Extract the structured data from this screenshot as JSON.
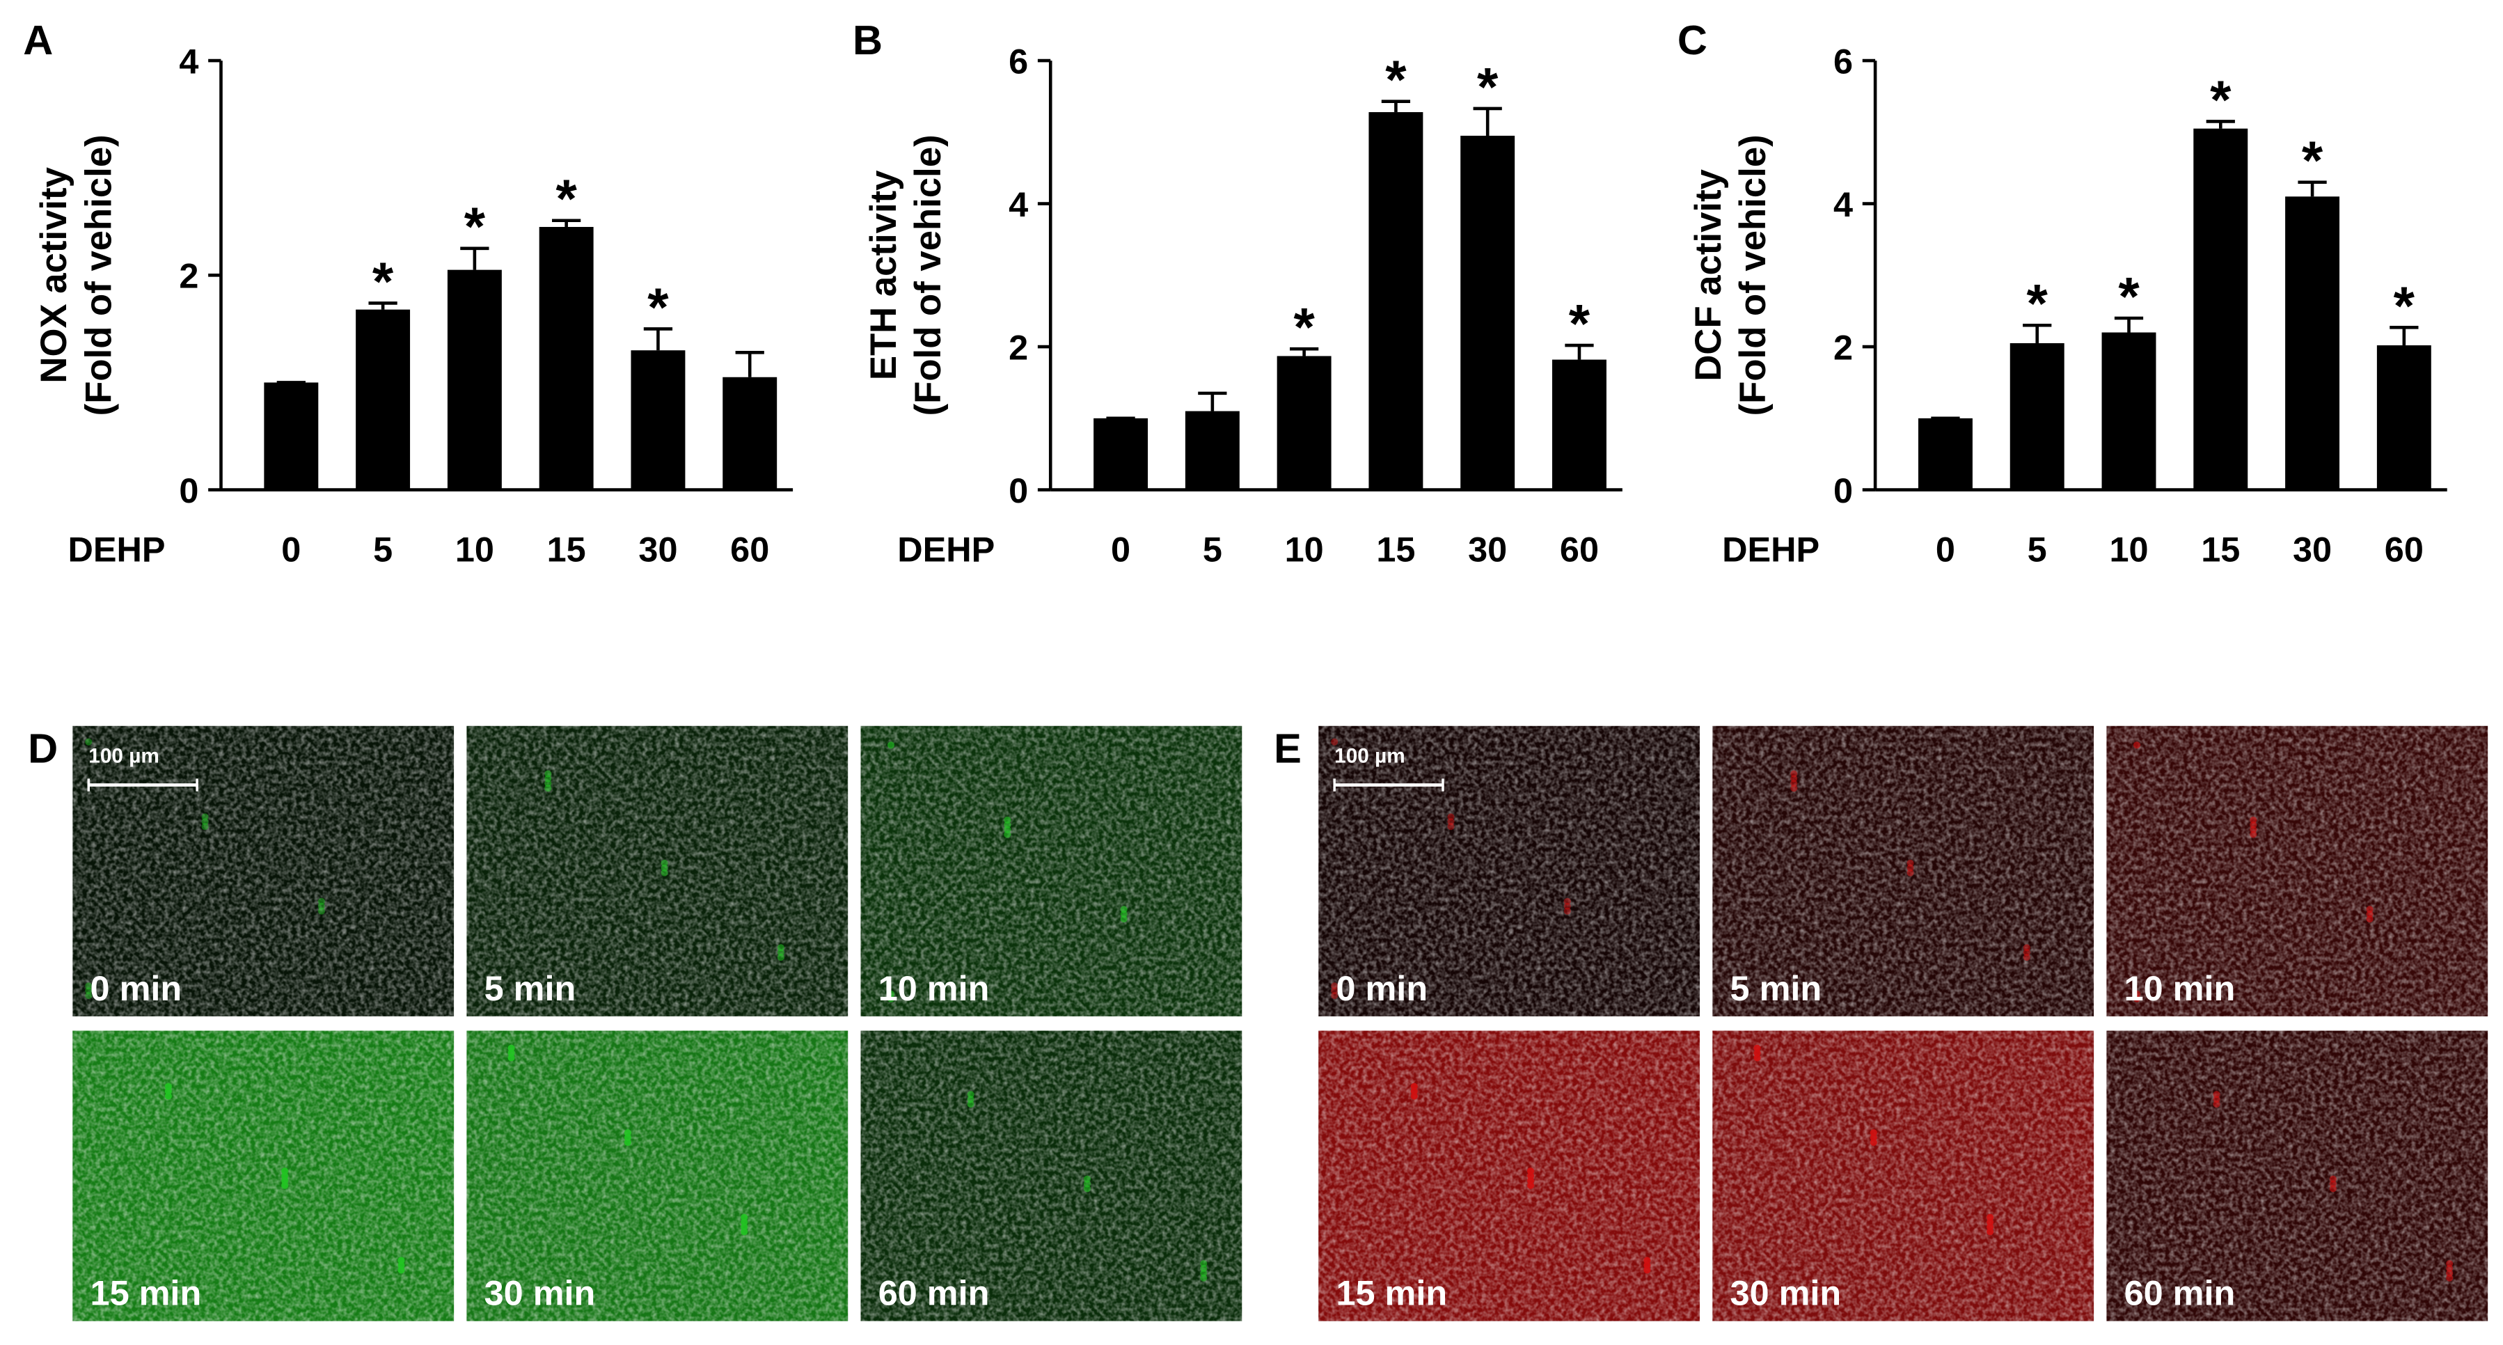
{
  "chart_data": [
    {
      "type": "bar",
      "panel": "A",
      "ylabel": [
        "NOX activity",
        "(Fold of vehicle)"
      ],
      "xlabel": "DEHP",
      "categories": [
        "0",
        "5",
        "10",
        "15",
        "30",
        "60"
      ],
      "values": [
        1.0,
        1.68,
        2.05,
        2.45,
        1.3,
        1.05
      ],
      "errors": [
        0,
        0.06,
        0.2,
        0.06,
        0.2,
        0.23
      ],
      "annotations": [
        {
          "index": 1,
          "text": "*"
        },
        {
          "index": 2,
          "text": "*"
        },
        {
          "index": 3,
          "text": "*"
        },
        {
          "index": 4,
          "text": "*"
        }
      ],
      "color": "#000000",
      "ylim": [
        0,
        4
      ],
      "yticks": [
        0,
        2,
        4
      ]
    },
    {
      "type": "bar",
      "panel": "B",
      "ylabel": [
        "ETH activity",
        "(Fold of vehicle)"
      ],
      "xlabel": "DEHP",
      "categories": [
        "0",
        "5",
        "10",
        "15",
        "30",
        "60"
      ],
      "values": [
        1.0,
        1.1,
        1.87,
        5.28,
        4.95,
        1.82
      ],
      "errors": [
        0,
        0.25,
        0.1,
        0.15,
        0.38,
        0.2
      ],
      "annotations": [
        {
          "index": 2,
          "text": "*"
        },
        {
          "index": 3,
          "text": "*"
        },
        {
          "index": 4,
          "text": "*"
        },
        {
          "index": 5,
          "text": "*"
        }
      ],
      "color": "#000000",
      "ylim": [
        0,
        6
      ],
      "yticks": [
        0,
        2,
        4,
        6
      ]
    },
    {
      "type": "bar",
      "panel": "C",
      "ylabel": [
        "DCF activity",
        "(Fold of vehicle)"
      ],
      "xlabel": "DEHP",
      "categories": [
        "0",
        "5",
        "10",
        "15",
        "30",
        "60"
      ],
      "values": [
        1.0,
        2.05,
        2.2,
        5.05,
        4.1,
        2.02
      ],
      "errors": [
        0,
        0.25,
        0.2,
        0.1,
        0.2,
        0.25
      ],
      "annotations": [
        {
          "index": 1,
          "text": "*"
        },
        {
          "index": 2,
          "text": "*"
        },
        {
          "index": 3,
          "text": "*"
        },
        {
          "index": 4,
          "text": "*"
        },
        {
          "index": 5,
          "text": "*"
        }
      ],
      "color": "#000000",
      "ylim": [
        0,
        6
      ],
      "yticks": [
        0,
        2,
        4,
        6
      ]
    }
  ],
  "micrographs": [
    {
      "panel": "D",
      "color": "#22c422",
      "scale_bar": "100 µm",
      "images": [
        "0 min",
        "5 min",
        "10 min",
        "15 min",
        "30 min",
        "60 min"
      ]
    },
    {
      "panel": "E",
      "color": "#d01010",
      "scale_bar": "100 µm",
      "images": [
        "0 min",
        "5 min",
        "10 min",
        "15 min",
        "30 min",
        "60 min"
      ]
    }
  ]
}
